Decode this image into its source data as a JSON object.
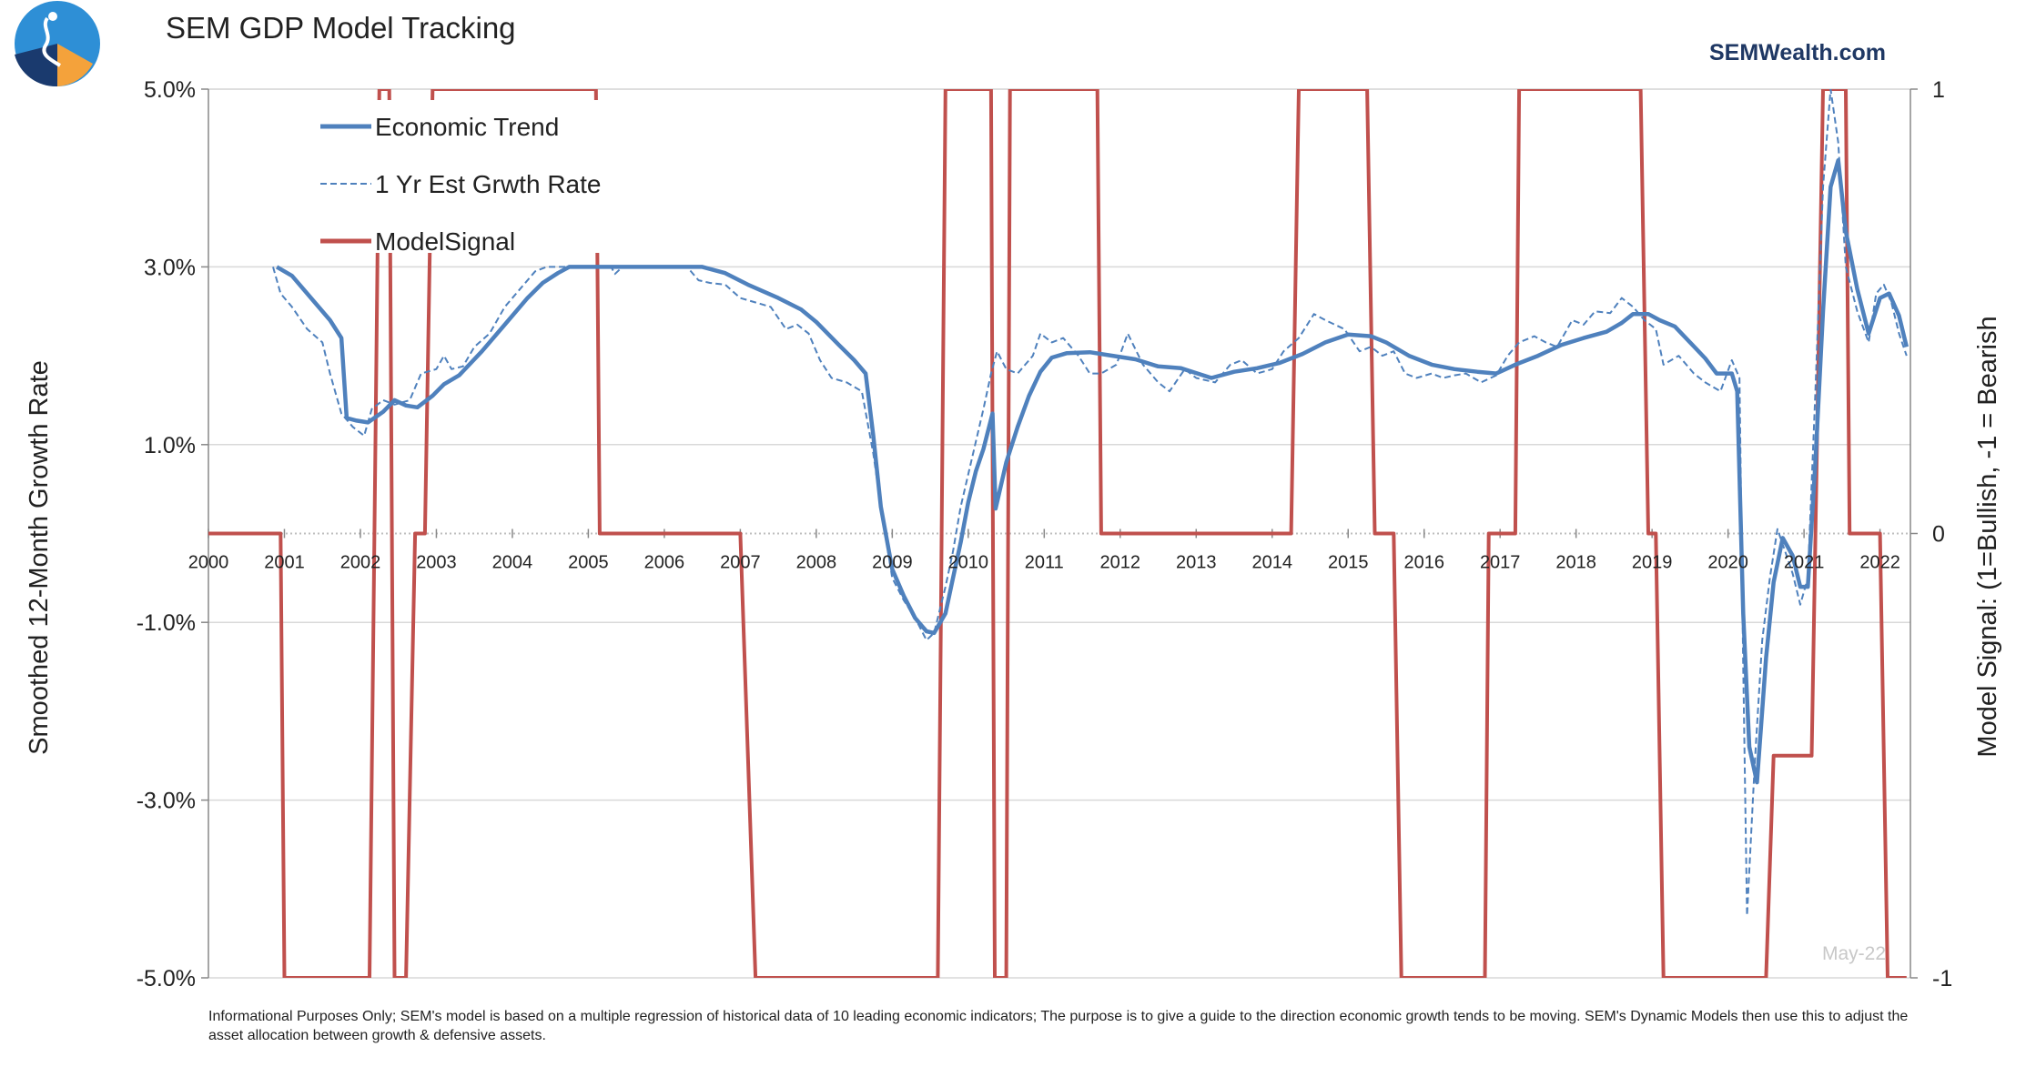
{
  "chart_data": {
    "type": "line",
    "title": "SEM GDP Model Tracking",
    "brand": "SEMWealth.com",
    "ylabel_left": "Smoothed 12-Month Growth Rate",
    "ylabel_right": "Model Signal: (1=Bullish, -1 = Bearish",
    "y_left_ticks": [
      "5.0%",
      "3.0%",
      "1.0%",
      "-1.0%",
      "-3.0%",
      "-5.0%"
    ],
    "y_left_range": [
      -5,
      5
    ],
    "y_right_ticks": [
      "1",
      "0",
      "-1"
    ],
    "y_right_range": [
      -1,
      1
    ],
    "x_ticks": [
      "2000",
      "2001",
      "2002",
      "2003",
      "2004",
      "2005",
      "2006",
      "2007",
      "2008",
      "2009",
      "2010",
      "2011",
      "2012",
      "2013",
      "2014",
      "2015",
      "2016",
      "2017",
      "2018",
      "2019",
      "2020",
      "2021",
      "2022"
    ],
    "x_range": [
      2000,
      2022.4
    ],
    "legend_placement": "top-left",
    "stamp": "May-22",
    "series": [
      {
        "name": "Economic Trend",
        "axis": "left",
        "color": "#4f81bd",
        "style": "solid",
        "points": [
          [
            2000.9,
            3.0
          ],
          [
            2001.1,
            2.9
          ],
          [
            2001.4,
            2.6
          ],
          [
            2001.6,
            2.4
          ],
          [
            2001.75,
            2.2
          ],
          [
            2001.82,
            1.3
          ],
          [
            2001.95,
            1.27
          ],
          [
            2002.1,
            1.25
          ],
          [
            2002.3,
            1.37
          ],
          [
            2002.45,
            1.5
          ],
          [
            2002.6,
            1.44
          ],
          [
            2002.75,
            1.42
          ],
          [
            2002.95,
            1.55
          ],
          [
            2003.1,
            1.68
          ],
          [
            2003.3,
            1.78
          ],
          [
            2003.6,
            2.05
          ],
          [
            2003.9,
            2.35
          ],
          [
            2004.2,
            2.65
          ],
          [
            2004.4,
            2.82
          ],
          [
            2004.6,
            2.93
          ],
          [
            2004.75,
            3.0
          ],
          [
            2006.5,
            3.0
          ],
          [
            2006.8,
            2.93
          ],
          [
            2007.1,
            2.8
          ],
          [
            2007.5,
            2.65
          ],
          [
            2007.8,
            2.52
          ],
          [
            2008.0,
            2.38
          ],
          [
            2008.3,
            2.12
          ],
          [
            2008.5,
            1.95
          ],
          [
            2008.65,
            1.8
          ],
          [
            2008.75,
            1.1
          ],
          [
            2008.85,
            0.3
          ],
          [
            2009.0,
            -0.4
          ],
          [
            2009.15,
            -0.7
          ],
          [
            2009.3,
            -0.95
          ],
          [
            2009.45,
            -1.1
          ],
          [
            2009.55,
            -1.12
          ],
          [
            2009.7,
            -0.9
          ],
          [
            2009.8,
            -0.5
          ],
          [
            2009.9,
            -0.1
          ],
          [
            2010.0,
            0.35
          ],
          [
            2010.1,
            0.7
          ],
          [
            2010.2,
            0.95
          ],
          [
            2010.32,
            1.35
          ],
          [
            2010.36,
            0.28
          ],
          [
            2010.5,
            0.8
          ],
          [
            2010.65,
            1.2
          ],
          [
            2010.8,
            1.55
          ],
          [
            2010.95,
            1.82
          ],
          [
            2011.1,
            1.98
          ],
          [
            2011.3,
            2.03
          ],
          [
            2011.6,
            2.04
          ],
          [
            2011.9,
            2.0
          ],
          [
            2012.2,
            1.96
          ],
          [
            2012.5,
            1.88
          ],
          [
            2012.8,
            1.86
          ],
          [
            2013.2,
            1.75
          ],
          [
            2013.5,
            1.82
          ],
          [
            2013.8,
            1.86
          ],
          [
            2014.1,
            1.92
          ],
          [
            2014.4,
            2.02
          ],
          [
            2014.7,
            2.15
          ],
          [
            2015.0,
            2.24
          ],
          [
            2015.3,
            2.22
          ],
          [
            2015.5,
            2.15
          ],
          [
            2015.8,
            2.0
          ],
          [
            2016.1,
            1.9
          ],
          [
            2016.4,
            1.85
          ],
          [
            2016.7,
            1.82
          ],
          [
            2016.95,
            1.8
          ],
          [
            2017.2,
            1.9
          ],
          [
            2017.5,
            2.0
          ],
          [
            2017.8,
            2.12
          ],
          [
            2018.1,
            2.2
          ],
          [
            2018.4,
            2.27
          ],
          [
            2018.6,
            2.37
          ],
          [
            2018.75,
            2.47
          ],
          [
            2018.95,
            2.47
          ],
          [
            2019.1,
            2.4
          ],
          [
            2019.3,
            2.33
          ],
          [
            2019.5,
            2.15
          ],
          [
            2019.7,
            1.97
          ],
          [
            2019.85,
            1.8
          ],
          [
            2020.05,
            1.8
          ],
          [
            2020.12,
            1.6
          ],
          [
            2020.2,
            -0.9
          ],
          [
            2020.28,
            -2.4
          ],
          [
            2020.38,
            -2.8
          ],
          [
            2020.5,
            -1.4
          ],
          [
            2020.6,
            -0.55
          ],
          [
            2020.72,
            -0.05
          ],
          [
            2020.85,
            -0.25
          ],
          [
            2020.95,
            -0.6
          ],
          [
            2021.05,
            -0.6
          ],
          [
            2021.15,
            0.8
          ],
          [
            2021.25,
            2.5
          ],
          [
            2021.35,
            3.9
          ],
          [
            2021.45,
            4.2
          ],
          [
            2021.55,
            3.4
          ],
          [
            2021.7,
            2.75
          ],
          [
            2021.85,
            2.25
          ],
          [
            2022.0,
            2.65
          ],
          [
            2022.12,
            2.7
          ],
          [
            2022.25,
            2.45
          ],
          [
            2022.35,
            2.1
          ]
        ]
      },
      {
        "name": "1 Yr Est Grwth Rate",
        "axis": "left",
        "color": "#4f81bd",
        "style": "dashed",
        "points": [
          [
            2000.85,
            3.0
          ],
          [
            2000.95,
            2.7
          ],
          [
            2001.1,
            2.55
          ],
          [
            2001.3,
            2.3
          ],
          [
            2001.5,
            2.15
          ],
          [
            2001.6,
            1.8
          ],
          [
            2001.75,
            1.35
          ],
          [
            2001.9,
            1.2
          ],
          [
            2002.05,
            1.1
          ],
          [
            2002.15,
            1.4
          ],
          [
            2002.3,
            1.5
          ],
          [
            2002.45,
            1.45
          ],
          [
            2002.65,
            1.5
          ],
          [
            2002.8,
            1.8
          ],
          [
            2003.0,
            1.85
          ],
          [
            2003.1,
            2.0
          ],
          [
            2003.2,
            1.85
          ],
          [
            2003.35,
            1.88
          ],
          [
            2003.5,
            2.1
          ],
          [
            2003.7,
            2.25
          ],
          [
            2003.9,
            2.55
          ],
          [
            2004.1,
            2.75
          ],
          [
            2004.3,
            2.95
          ],
          [
            2004.45,
            3.0
          ],
          [
            2005.3,
            3.0
          ],
          [
            2005.35,
            2.92
          ],
          [
            2005.45,
            3.0
          ],
          [
            2006.3,
            3.0
          ],
          [
            2006.45,
            2.85
          ],
          [
            2006.6,
            2.82
          ],
          [
            2006.8,
            2.8
          ],
          [
            2007.0,
            2.65
          ],
          [
            2007.2,
            2.6
          ],
          [
            2007.4,
            2.55
          ],
          [
            2007.6,
            2.3
          ],
          [
            2007.75,
            2.35
          ],
          [
            2007.9,
            2.25
          ],
          [
            2008.05,
            1.95
          ],
          [
            2008.2,
            1.75
          ],
          [
            2008.4,
            1.7
          ],
          [
            2008.6,
            1.6
          ],
          [
            2008.75,
            0.9
          ],
          [
            2008.85,
            0.3
          ],
          [
            2009.0,
            -0.5
          ],
          [
            2009.15,
            -0.75
          ],
          [
            2009.3,
            -0.95
          ],
          [
            2009.45,
            -1.2
          ],
          [
            2009.55,
            -1.12
          ],
          [
            2009.7,
            -0.6
          ],
          [
            2009.8,
            -0.2
          ],
          [
            2009.9,
            0.3
          ],
          [
            2010.05,
            0.85
          ],
          [
            2010.2,
            1.4
          ],
          [
            2010.3,
            1.8
          ],
          [
            2010.38,
            2.05
          ],
          [
            2010.5,
            1.85
          ],
          [
            2010.65,
            1.8
          ],
          [
            2010.85,
            2.0
          ],
          [
            2010.95,
            2.25
          ],
          [
            2011.1,
            2.15
          ],
          [
            2011.25,
            2.2
          ],
          [
            2011.45,
            2.0
          ],
          [
            2011.6,
            1.8
          ],
          [
            2011.75,
            1.8
          ],
          [
            2011.95,
            1.9
          ],
          [
            2012.1,
            2.25
          ],
          [
            2012.3,
            1.9
          ],
          [
            2012.5,
            1.7
          ],
          [
            2012.65,
            1.6
          ],
          [
            2012.85,
            1.85
          ],
          [
            2013.0,
            1.75
          ],
          [
            2013.25,
            1.7
          ],
          [
            2013.45,
            1.9
          ],
          [
            2013.6,
            1.95
          ],
          [
            2013.8,
            1.8
          ],
          [
            2014.0,
            1.85
          ],
          [
            2014.15,
            2.05
          ],
          [
            2014.35,
            2.2
          ],
          [
            2014.55,
            2.47
          ],
          [
            2014.7,
            2.4
          ],
          [
            2014.95,
            2.3
          ],
          [
            2015.15,
            2.05
          ],
          [
            2015.3,
            2.1
          ],
          [
            2015.45,
            2.0
          ],
          [
            2015.6,
            2.05
          ],
          [
            2015.75,
            1.8
          ],
          [
            2015.9,
            1.75
          ],
          [
            2016.1,
            1.8
          ],
          [
            2016.25,
            1.75
          ],
          [
            2016.4,
            1.78
          ],
          [
            2016.55,
            1.8
          ],
          [
            2016.75,
            1.7
          ],
          [
            2016.95,
            1.78
          ],
          [
            2017.1,
            2.0
          ],
          [
            2017.25,
            2.15
          ],
          [
            2017.45,
            2.22
          ],
          [
            2017.6,
            2.15
          ],
          [
            2017.75,
            2.1
          ],
          [
            2017.95,
            2.4
          ],
          [
            2018.1,
            2.35
          ],
          [
            2018.25,
            2.5
          ],
          [
            2018.45,
            2.48
          ],
          [
            2018.6,
            2.65
          ],
          [
            2018.75,
            2.55
          ],
          [
            2018.9,
            2.4
          ],
          [
            2019.05,
            2.3
          ],
          [
            2019.15,
            1.9
          ],
          [
            2019.35,
            2.0
          ],
          [
            2019.55,
            1.8
          ],
          [
            2019.7,
            1.7
          ],
          [
            2019.9,
            1.6
          ],
          [
            2020.05,
            1.95
          ],
          [
            2020.15,
            1.75
          ],
          [
            2020.2,
            -1.5
          ],
          [
            2020.25,
            -4.3
          ],
          [
            2020.35,
            -2.6
          ],
          [
            2020.45,
            -1.2
          ],
          [
            2020.55,
            -0.5
          ],
          [
            2020.65,
            0.05
          ],
          [
            2020.75,
            -0.2
          ],
          [
            2020.85,
            -0.45
          ],
          [
            2020.95,
            -0.8
          ],
          [
            2021.05,
            -0.5
          ],
          [
            2021.15,
            1.6
          ],
          [
            2021.25,
            3.9
          ],
          [
            2021.35,
            5.0
          ],
          [
            2021.45,
            4.4
          ],
          [
            2021.55,
            3.0
          ],
          [
            2021.7,
            2.5
          ],
          [
            2021.85,
            2.15
          ],
          [
            2021.95,
            2.7
          ],
          [
            2022.05,
            2.8
          ],
          [
            2022.15,
            2.6
          ],
          [
            2022.25,
            2.25
          ],
          [
            2022.35,
            2.0
          ]
        ]
      },
      {
        "name": "ModelSignal",
        "axis": "right",
        "color": "#c0504d",
        "style": "solid",
        "points": [
          [
            2000.0,
            0
          ],
          [
            2000.95,
            0
          ],
          [
            2001.0,
            -1
          ],
          [
            2002.12,
            -1
          ],
          [
            2002.25,
            1
          ],
          [
            2002.38,
            1
          ],
          [
            2002.45,
            -1
          ],
          [
            2002.6,
            -1
          ],
          [
            2002.72,
            0
          ],
          [
            2002.85,
            0
          ],
          [
            2002.95,
            1
          ],
          [
            2005.1,
            1
          ],
          [
            2005.15,
            0
          ],
          [
            2007.0,
            0
          ],
          [
            2007.2,
            -1
          ],
          [
            2009.6,
            -1
          ],
          [
            2009.7,
            1
          ],
          [
            2010.3,
            1
          ],
          [
            2010.35,
            -1
          ],
          [
            2010.5,
            -1
          ],
          [
            2010.55,
            1
          ],
          [
            2011.7,
            1
          ],
          [
            2011.75,
            0
          ],
          [
            2014.25,
            0
          ],
          [
            2014.35,
            1
          ],
          [
            2015.25,
            1
          ],
          [
            2015.35,
            0
          ],
          [
            2015.6,
            0
          ],
          [
            2015.7,
            -1
          ],
          [
            2016.8,
            -1
          ],
          [
            2016.85,
            0
          ],
          [
            2017.2,
            0
          ],
          [
            2017.25,
            1
          ],
          [
            2018.85,
            1
          ],
          [
            2018.95,
            0
          ],
          [
            2019.05,
            0
          ],
          [
            2019.15,
            -1
          ],
          [
            2020.5,
            -1
          ],
          [
            2020.6,
            -0.5
          ],
          [
            2021.1,
            -0.5
          ],
          [
            2021.25,
            1
          ],
          [
            2021.55,
            1
          ],
          [
            2021.6,
            0
          ],
          [
            2022.0,
            0
          ],
          [
            2022.1,
            -1
          ],
          [
            2022.35,
            -1
          ]
        ]
      }
    ],
    "footnote": "Informational Purposes Only; SEM's model is based on a multiple regression of historical data of 10 leading economic indicators; The purpose is to give a guide to the direction economic growth tends to be moving. SEM's Dynamic Models then use this to adjust the asset allocation between growth & defensive assets."
  },
  "colors": {
    "trend": "#4f81bd",
    "signal": "#c0504d",
    "brand": "#1f3864",
    "logo_blue": "#2e8fd6",
    "logo_dark": "#1a3a6e",
    "logo_orange": "#f4a23b"
  }
}
